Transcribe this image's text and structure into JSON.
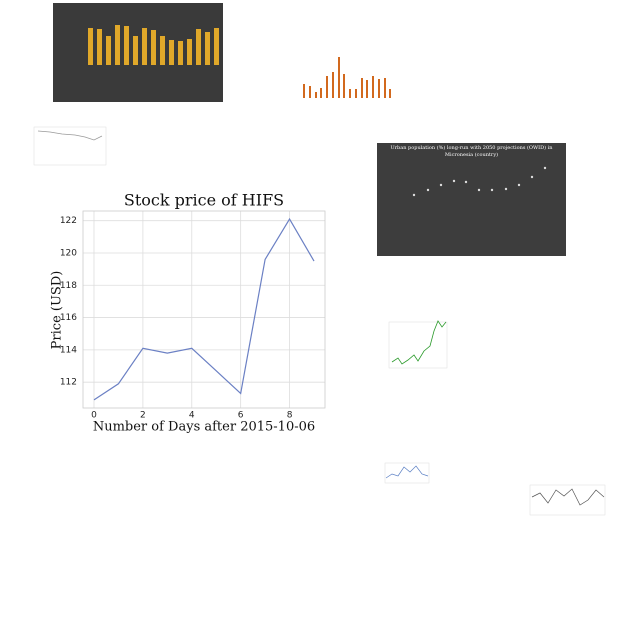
{
  "chart_data": {
    "type": "line",
    "title": "Stock price of HIFS",
    "x_label": "Number of Days after 2015-10-06",
    "y_label": "Price (USD)",
    "x": [
      0,
      1,
      2,
      3,
      4,
      5,
      6,
      7,
      8,
      9
    ],
    "series": [
      {
        "name": "HIFS",
        "color": "#6b80c4",
        "values": [
          110.9,
          111.9,
          114.1,
          113.8,
          114.1,
          112.7,
          111.3,
          119.6,
          122.1,
          119.5
        ]
      }
    ],
    "xlim": [
      -0.45,
      9.45
    ],
    "xticks": [
      0,
      2,
      4,
      6,
      8
    ],
    "ylim": [
      110.4,
      122.6
    ],
    "yticks": [
      112,
      114,
      116,
      118,
      120,
      122
    ],
    "grid": true
  },
  "thumbnails": [
    {
      "title": "Urban population (%) long-run with 2050 projections (OWID) in Micronesia (country)"
    }
  ]
}
